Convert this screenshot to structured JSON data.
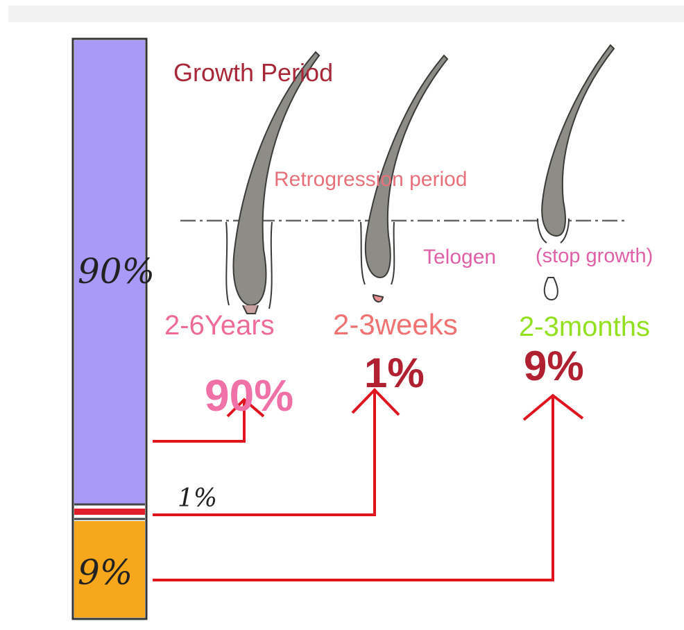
{
  "labels": {
    "growth_period": "Growth Period",
    "retrogression_period": "Retrogression period",
    "telogen": "Telogen",
    "stop_growth": "(stop growth)"
  },
  "durations": [
    "2-6Years",
    "2-3weeks",
    "2-3months"
  ],
  "percentages": [
    "90%",
    "1%",
    "9%"
  ],
  "bar_labels": [
    "90%",
    "1%",
    "9%"
  ]
}
